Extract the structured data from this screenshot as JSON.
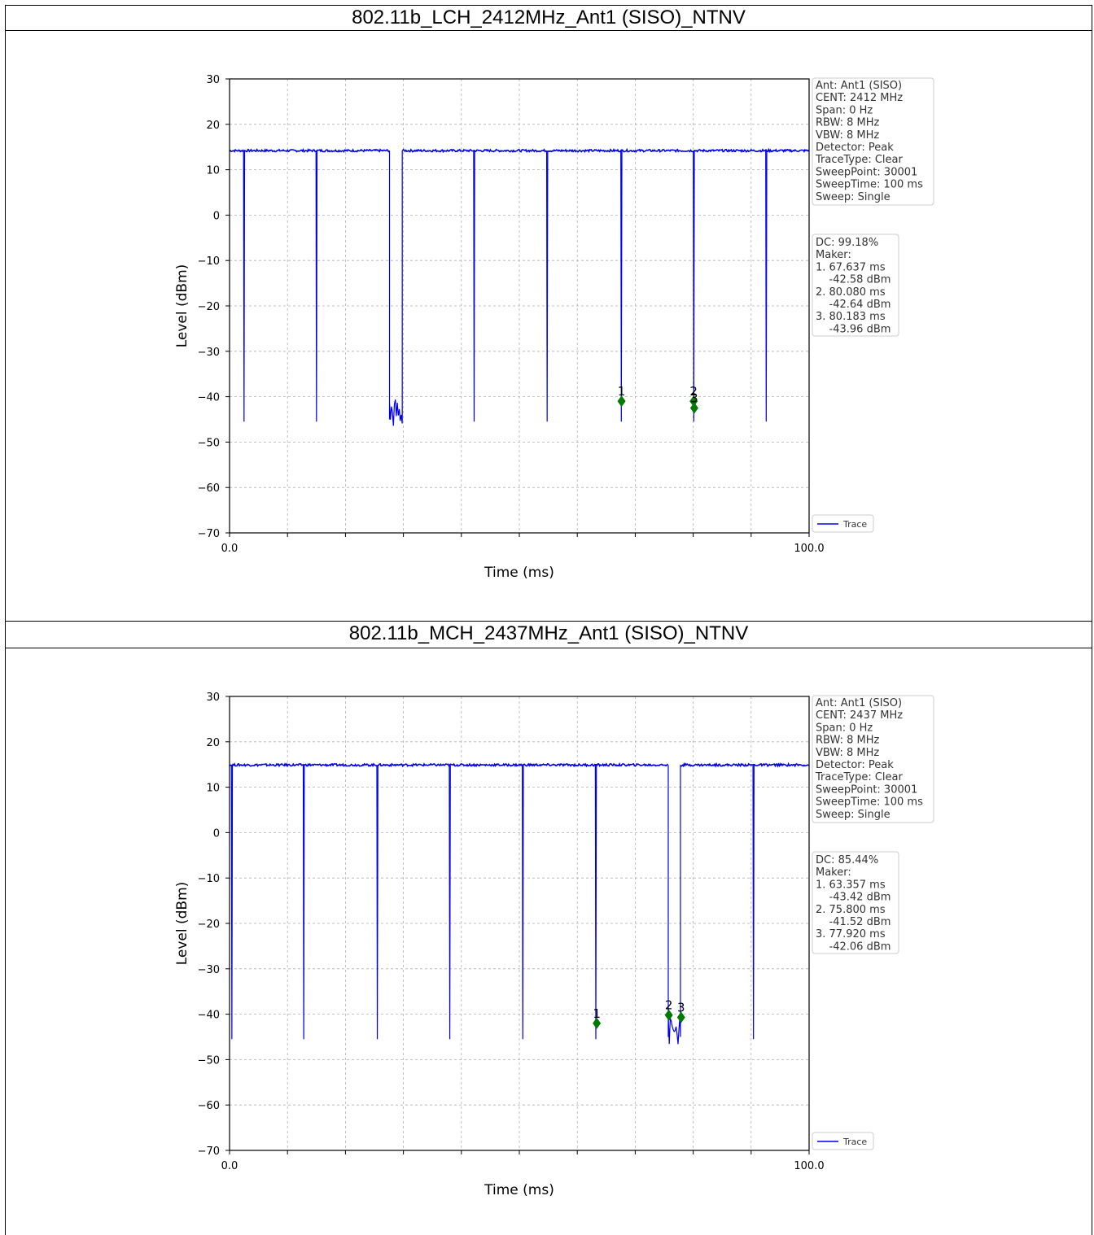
{
  "colors": {
    "trace": "#0000ee",
    "marker": "#007a00",
    "grid": "#b0b0b0"
  },
  "chart_data": [
    {
      "type": "line",
      "title": "802.11b_LCH_2412MHz_Ant1 (SISO)_NTNV",
      "xlabel": "Time (ms)",
      "ylabel": "Level (dBm)",
      "xlim": [
        0,
        100
      ],
      "ylim": [
        -70,
        30
      ],
      "x_tick_labels": [
        "0.0",
        "100.0"
      ],
      "y_ticks": [
        30,
        20,
        10,
        0,
        -10,
        -20,
        -30,
        -40,
        -50,
        -60,
        -70
      ],
      "y_tick_labels": [
        "30",
        "20",
        "10",
        "0",
        "−10",
        "−20",
        "−30",
        "−40",
        "−50",
        "−60",
        "−70"
      ],
      "grid": true,
      "legend": {
        "position": "bottom-right",
        "entries": [
          "Trace"
        ]
      },
      "series": [
        {
          "name": "Trace",
          "on_level": 14.2,
          "floor_level": -45,
          "dip_times": [
            2.5,
            15.0,
            42.2,
            54.8,
            67.6,
            80.1,
            92.6
          ],
          "gap": [
            27.6,
            29.8
          ]
        }
      ],
      "markers": [
        {
          "label": "1",
          "x": 67.637,
          "y": -41.0
        },
        {
          "label": "2",
          "x": 80.08,
          "y": -41.0
        },
        {
          "label": "3",
          "x": 80.183,
          "y": -42.5
        }
      ],
      "settings_box": [
        "Ant: Ant1 (SISO)",
        "CENT: 2412 MHz",
        "Span: 0 Hz",
        "RBW: 8 MHz",
        "VBW: 8 MHz",
        "Detector: Peak",
        "TraceType: Clear",
        "SweepPoint: 30001",
        "SweepTime: 100 ms",
        "Sweep: Single"
      ],
      "result_box": [
        "DC: 99.18%",
        "Maker:",
        "1. 67.637 ms",
        "    -42.58 dBm",
        "2. 80.080 ms",
        "    -42.64 dBm",
        "3. 80.183 ms",
        "    -43.96 dBm"
      ]
    },
    {
      "type": "line",
      "title": "802.11b_MCH_2437MHz_Ant1 (SISO)_NTNV",
      "xlabel": "Time (ms)",
      "ylabel": "Level (dBm)",
      "xlim": [
        0,
        100
      ],
      "ylim": [
        -70,
        30
      ],
      "x_tick_labels": [
        "0.0",
        "100.0"
      ],
      "y_ticks": [
        30,
        20,
        10,
        0,
        -10,
        -20,
        -30,
        -40,
        -50,
        -60,
        -70
      ],
      "y_tick_labels": [
        "30",
        "20",
        "10",
        "0",
        "−10",
        "−20",
        "−30",
        "−40",
        "−50",
        "−60",
        "−70"
      ],
      "grid": true,
      "legend": {
        "position": "bottom-right",
        "entries": [
          "Trace"
        ]
      },
      "series": [
        {
          "name": "Trace",
          "on_level": 14.9,
          "floor_level": -45,
          "dip_times": [
            0.4,
            12.8,
            25.5,
            38.0,
            50.6,
            63.2,
            90.4
          ],
          "gap": [
            75.7,
            77.8
          ]
        }
      ],
      "markers": [
        {
          "label": "1",
          "x": 63.357,
          "y": -42.0
        },
        {
          "label": "2",
          "x": 75.8,
          "y": -40.2
        },
        {
          "label": "3",
          "x": 77.92,
          "y": -40.7
        }
      ],
      "settings_box": [
        "Ant: Ant1 (SISO)",
        "CENT: 2437 MHz",
        "Span: 0 Hz",
        "RBW: 8 MHz",
        "VBW: 8 MHz",
        "Detector: Peak",
        "TraceType: Clear",
        "SweepPoint: 30001",
        "SweepTime: 100 ms",
        "Sweep: Single"
      ],
      "result_box": [
        "DC: 85.44%",
        "Maker:",
        "1. 63.357 ms",
        "    -43.42 dBm",
        "2. 75.800 ms",
        "    -41.52 dBm",
        "3. 77.920 ms",
        "    -42.06 dBm"
      ]
    }
  ]
}
